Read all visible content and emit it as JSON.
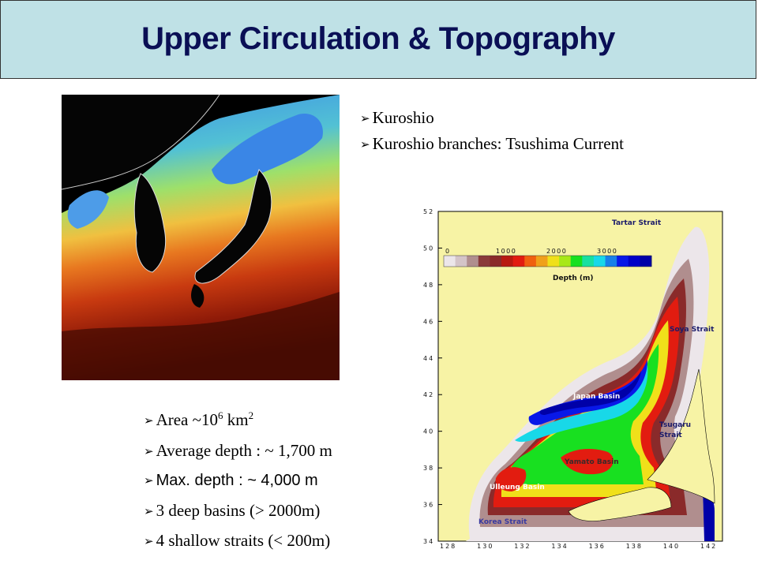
{
  "slide": {
    "title": "Upper Circulation & Topography"
  },
  "top_bullets": [
    {
      "text": "Kuroshio"
    },
    {
      "text": "Kuroshio branches: Tsushima Current"
    }
  ],
  "bottom_bullets": {
    "area": {
      "prefix": "Area ~10",
      "exp": "6",
      "mid": " km",
      "exp2": "2"
    },
    "avg_depth": "Average depth : ~ 1,700 m",
    "max_depth": "Max. depth : ~ 4,000 m",
    "basins": "3 deep basins (> 2000m)",
    "straits": "4 shallow straits (< 200m)"
  },
  "bathymetry_map": {
    "y_ticks": [
      "52",
      "50",
      "48",
      "46",
      "44",
      "42",
      "40",
      "38",
      "36",
      "34"
    ],
    "x_ticks": [
      "128",
      "130",
      "132",
      "134",
      "136",
      "138",
      "140",
      "142"
    ],
    "colorbar": {
      "ticks": [
        "0",
        "1000",
        "2000",
        "3000"
      ],
      "label": "Depth (m)"
    },
    "labels": {
      "tartar": "Tartar Strait",
      "soya": "Soya Strait",
      "tsugaru1": "Tsugaru",
      "tsugaru2": "Strait",
      "japan_basin": "Japan Basin",
      "yamato_basin": "Yamato Basin",
      "ulleung_basin": "Ulleung Basin",
      "korea_strait": "Korea Strait"
    },
    "colors": {
      "land": "#f7f3a5",
      "shelf": "#ece6ea",
      "deep": "#0000a8"
    }
  }
}
